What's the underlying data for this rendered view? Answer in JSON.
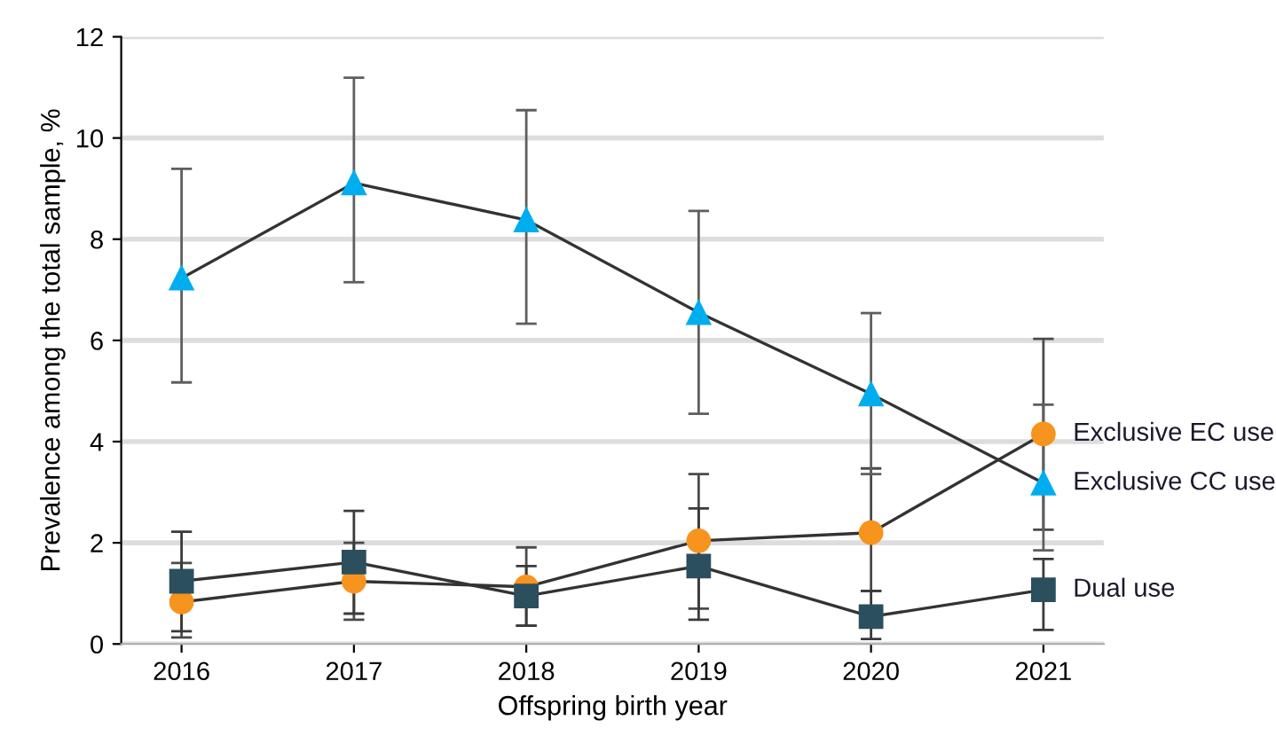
{
  "chart_data": {
    "type": "line",
    "xlabel": "Offspring birth year",
    "ylabel": "Prevalence among the total sample, %",
    "categories": [
      "2016",
      "2017",
      "2018",
      "2019",
      "2020",
      "2021"
    ],
    "series": [
      {
        "name": "Exclusive EC use",
        "color": "#f7941d",
        "marker": "circle",
        "values": [
          0.83,
          1.24,
          1.13,
          2.04,
          2.2,
          4.15
        ],
        "errors": [
          [
            0.13,
            1.6
          ],
          [
            0.48,
            2.0
          ],
          [
            0.36,
            1.91
          ],
          [
            0.7,
            3.36
          ],
          [
            1.05,
            3.47
          ],
          [
            2.26,
            6.03
          ]
        ]
      },
      {
        "name": "Exclusive CC use",
        "color": "#00aeef",
        "marker": "triangle",
        "values": [
          7.23,
          9.11,
          8.38,
          6.55,
          4.94,
          3.18
        ],
        "errors": [
          [
            5.17,
            9.39
          ],
          [
            7.15,
            11.19
          ],
          [
            6.33,
            10.55
          ],
          [
            4.55,
            8.56
          ],
          [
            3.36,
            6.54
          ],
          [
            1.85,
            4.73
          ]
        ]
      },
      {
        "name": "Dual use",
        "color": "#2c4f5e",
        "marker": "square",
        "values": [
          1.24,
          1.62,
          0.95,
          1.54,
          0.54,
          1.07
        ],
        "errors": [
          [
            0.25,
            2.22
          ],
          [
            0.6,
            2.63
          ],
          [
            0.36,
            1.54
          ],
          [
            0.48,
            2.68
          ],
          [
            0.1,
            1.05
          ],
          [
            0.28,
            1.68
          ]
        ]
      }
    ],
    "ylim": [
      0,
      12
    ],
    "yticks": [
      0,
      2,
      4,
      6,
      8,
      10,
      12
    ],
    "grid": "y",
    "legend": false,
    "line_style": "solid"
  }
}
